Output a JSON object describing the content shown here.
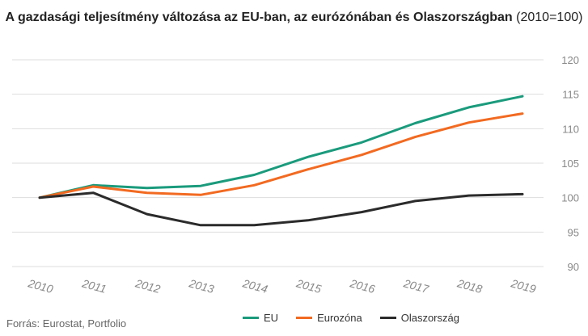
{
  "title": {
    "bold": "A gazdasági teljesítmény változása az EU-ban, az eurózónában és Olaszországban",
    "suffix": "(2010=100)"
  },
  "source": "Forrás: Eurostat, Portfolio",
  "colors": {
    "EU": "#1a9b7c",
    "Eurozóna": "#f26a21",
    "Olaszország": "#2b2b2b",
    "grid": "#dddddd",
    "axis_text": "#888888"
  },
  "chart_data": {
    "type": "line",
    "x": [
      "2010",
      "2011",
      "2012",
      "2013",
      "2014",
      "2015",
      "2016",
      "2017",
      "2018",
      "2019"
    ],
    "ylim": [
      90,
      120
    ],
    "yticks": [
      90,
      95,
      100,
      105,
      110,
      115,
      120
    ],
    "grid": true,
    "legend_position": "bottom",
    "series": [
      {
        "name": "EU",
        "color": "#1a9b7c",
        "values": [
          100,
          101.8,
          101.4,
          101.7,
          103.3,
          105.9,
          108.0,
          110.8,
          113.1,
          114.7
        ]
      },
      {
        "name": "Eurozóna",
        "color": "#f26a21",
        "values": [
          100,
          101.6,
          100.7,
          100.4,
          101.8,
          104.1,
          106.2,
          108.8,
          110.9,
          112.2
        ]
      },
      {
        "name": "Olaszország",
        "color": "#2b2b2b",
        "values": [
          100,
          100.7,
          97.6,
          96.0,
          96.0,
          96.7,
          97.9,
          99.5,
          100.3,
          100.5
        ]
      }
    ]
  }
}
